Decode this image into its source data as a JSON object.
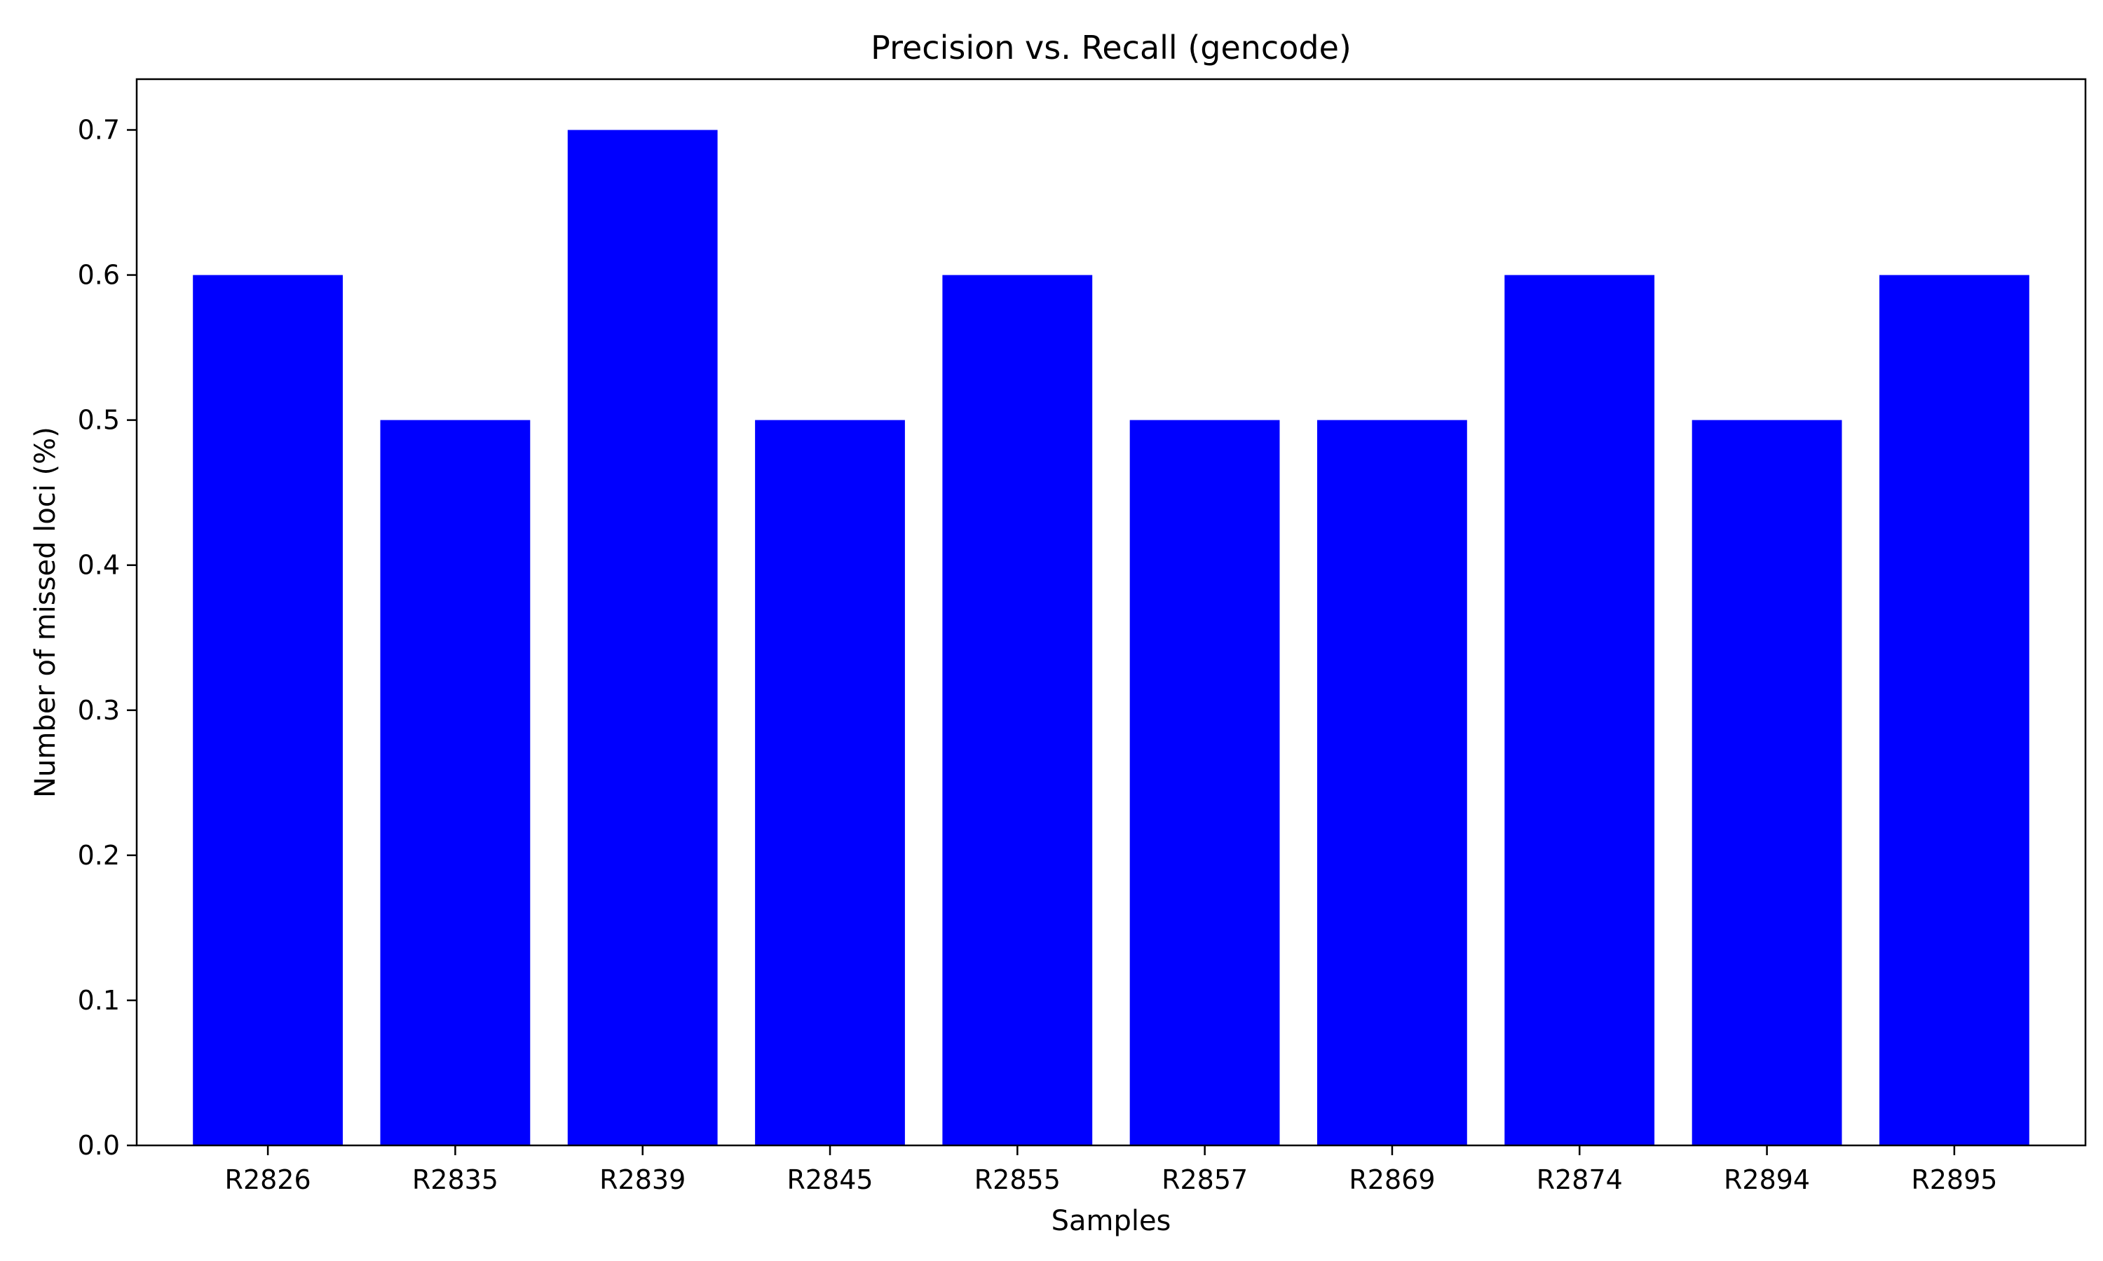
{
  "chart_data": {
    "type": "bar",
    "title": "Precision vs. Recall (gencode)",
    "xlabel": "Samples",
    "ylabel": "Number of missed loci (%)",
    "categories": [
      "R2826",
      "R2835",
      "R2839",
      "R2845",
      "R2855",
      "R2857",
      "R2869",
      "R2874",
      "R2894",
      "R2895"
    ],
    "values": [
      0.6,
      0.5,
      0.7,
      0.5,
      0.6,
      0.5,
      0.5,
      0.6,
      0.5,
      0.6
    ],
    "ylim": [
      0,
      0.735
    ],
    "yticks": [
      "0.0",
      "0.1",
      "0.2",
      "0.3",
      "0.4",
      "0.5",
      "0.6",
      "0.7"
    ],
    "bar_color": "#0000ff",
    "grid": false,
    "legend": "none"
  }
}
